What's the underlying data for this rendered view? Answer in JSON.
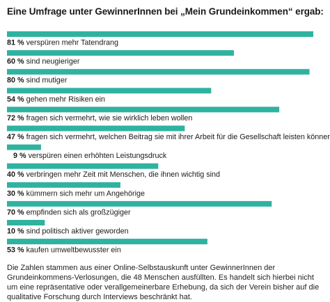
{
  "title": "Eine Umfrage unter GewinnerInnen bei „Mein Grundeinkommen“ ergab:",
  "note": "Die Zahlen stammen aus einer Online-Selbstauskunft unter GewinnerInnen der Grundeinkommens-Verlosungen, die 48 Menschen ausfüllten. Es handelt sich hierbei nicht um eine repräsentative oder verallgemeinerbare Erhebung, da sich der Verein bisher auf die qualitative Forschung durch Interviews beschränkt hat.",
  "colors": {
    "bar": "#2fb3a0",
    "text": "#1a1a1a"
  },
  "chart_data": {
    "type": "bar",
    "orientation": "horizontal",
    "unit": "%",
    "xlim": [
      0,
      81
    ],
    "categories": [
      "verspüren mehr Tatendrang",
      "sind neugieriger",
      "sind mutiger",
      "gehen mehr Risiken ein",
      "fragen sich vermehrt, wie sie wirklich leben wollen",
      "fragen sich vermehrt, welchen Beitrag sie mit ihrer Arbeit für die Gesellschaft leisten können",
      "verspüren einen erhöhten Leistungsdruck",
      "verbringen mehr Zeit mit Menschen, die ihnen wichtig sind",
      "kümmern sich mehr um Angehörige",
      "empfinden sich als großzügiger",
      "sind politisch aktiver geworden",
      "kaufen umweltbewusster ein"
    ],
    "values": [
      81,
      60,
      80,
      54,
      72,
      47,
      9,
      40,
      30,
      70,
      10,
      53
    ],
    "value_labels": [
      "81 %",
      "60 %",
      "80 %",
      "54 %",
      "72 %",
      "47 %",
      "9 %",
      "40 %",
      "30 %",
      "70 %",
      "10 %",
      "53 %"
    ]
  }
}
